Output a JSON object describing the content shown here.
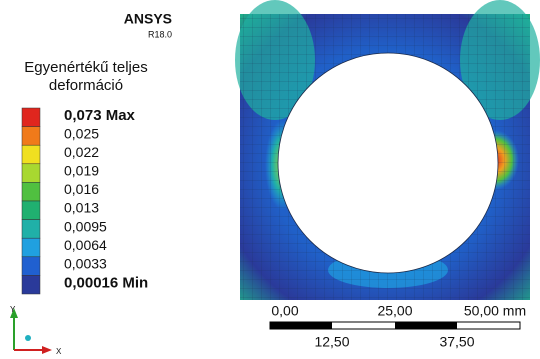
{
  "header": {
    "brand": "ANSYS",
    "version": "R18.0"
  },
  "legend": {
    "title_lines": [
      "Egyenértékű teljes",
      "deformáció"
    ],
    "labels": [
      "0,073 Max",
      "0,025",
      "0,022",
      "0,019",
      "0,016",
      "0,013",
      "0,0095",
      "0,0064",
      "0,0033",
      "0,00016 Min"
    ],
    "colors": [
      "#e0261e",
      "#f07a1a",
      "#f0e020",
      "#a8d830",
      "#50c040",
      "#20b070",
      "#20b0a8",
      "#20a0e0",
      "#2060d0",
      "#2a3a9a"
    ]
  },
  "scale_bar": {
    "top_labels": [
      "0,00",
      "25,00",
      "50,00 mm"
    ],
    "bottom_labels": [
      "12,50",
      "37,50"
    ]
  },
  "triad": {
    "y": "Y",
    "x": "X"
  }
}
